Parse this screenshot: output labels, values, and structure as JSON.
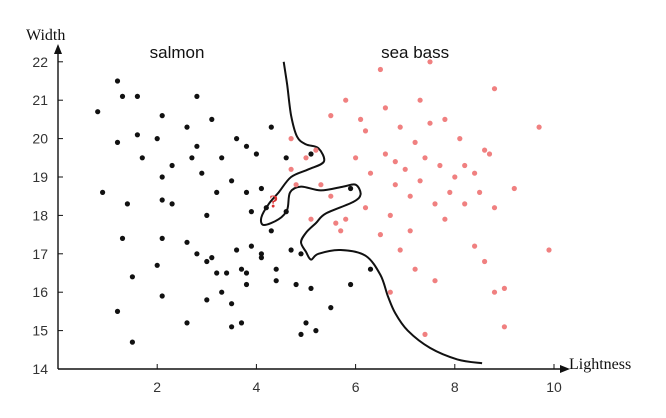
{
  "chart_data": {
    "type": "scatter",
    "xlabel": "Lightness",
    "ylabel": "Width",
    "xlim": [
      0,
      11.2
    ],
    "ylim": [
      14,
      22.4
    ],
    "x_ticks": [
      2,
      4,
      6,
      8,
      10
    ],
    "y_ticks": [
      14,
      15,
      16,
      17,
      18,
      19,
      20,
      21,
      22
    ],
    "grid": false,
    "annotations": [
      {
        "id": "salmon",
        "text": "salmon",
        "x": 2.4,
        "y": 22.1
      },
      {
        "id": "seabass",
        "text": "sea bass",
        "x": 7.2,
        "y": 22.1
      },
      {
        "id": "query",
        "text": "?",
        "x": 4.35,
        "y": 18.2
      }
    ],
    "series": [
      {
        "name": "salmon",
        "color": "#111111",
        "points": [
          [
            0.8,
            20.7
          ],
          [
            1.2,
            21.5
          ],
          [
            1.3,
            21.1
          ],
          [
            1.6,
            21.1
          ],
          [
            1.2,
            19.9
          ],
          [
            1.6,
            20.1
          ],
          [
            0.9,
            18.6
          ],
          [
            1.4,
            18.3
          ],
          [
            1.3,
            17.4
          ],
          [
            1.5,
            16.4
          ],
          [
            1.2,
            15.5
          ],
          [
            1.5,
            14.7
          ],
          [
            1.7,
            19.5
          ],
          [
            2.0,
            20.0
          ],
          [
            2.1,
            20.6
          ],
          [
            2.1,
            19.0
          ],
          [
            2.1,
            18.4
          ],
          [
            2.3,
            18.3
          ],
          [
            2.1,
            17.4
          ],
          [
            2.0,
            16.7
          ],
          [
            2.1,
            15.9
          ],
          [
            2.6,
            15.2
          ],
          [
            2.3,
            19.3
          ],
          [
            2.6,
            20.3
          ],
          [
            2.8,
            21.1
          ],
          [
            2.8,
            19.8
          ],
          [
            3.1,
            20.5
          ],
          [
            2.7,
            19.5
          ],
          [
            2.9,
            19.1
          ],
          [
            3.0,
            18.0
          ],
          [
            3.2,
            18.6
          ],
          [
            2.6,
            17.3
          ],
          [
            2.8,
            17.0
          ],
          [
            3.0,
            16.8
          ],
          [
            3.1,
            16.9
          ],
          [
            3.2,
            16.5
          ],
          [
            3.4,
            16.5
          ],
          [
            3.6,
            17.1
          ],
          [
            3.5,
            18.9
          ],
          [
            3.6,
            20.0
          ],
          [
            3.8,
            19.8
          ],
          [
            3.3,
            19.5
          ],
          [
            4.0,
            19.6
          ],
          [
            3.8,
            18.6
          ],
          [
            3.9,
            18.1
          ],
          [
            4.1,
            18.7
          ],
          [
            4.2,
            18.2
          ],
          [
            3.9,
            17.2
          ],
          [
            4.1,
            17.0
          ],
          [
            3.7,
            16.6
          ],
          [
            3.8,
            16.5
          ],
          [
            4.3,
            17.6
          ],
          [
            3.3,
            16.0
          ],
          [
            3.8,
            16.2
          ],
          [
            4.4,
            16.6
          ],
          [
            4.4,
            16.3
          ],
          [
            3.5,
            15.7
          ],
          [
            3.7,
            15.2
          ],
          [
            3.5,
            15.1
          ],
          [
            4.3,
            20.3
          ],
          [
            4.6,
            19.5
          ],
          [
            5.1,
            19.6
          ],
          [
            4.6,
            18.1
          ],
          [
            4.8,
            16.2
          ],
          [
            4.9,
            17.0
          ],
          [
            5.1,
            16.1
          ],
          [
            5.0,
            15.2
          ],
          [
            5.2,
            15.0
          ],
          [
            4.9,
            14.9
          ],
          [
            5.5,
            15.6
          ],
          [
            5.9,
            16.2
          ],
          [
            6.3,
            16.6
          ],
          [
            5.9,
            18.7
          ],
          [
            4.7,
            17.1
          ],
          [
            3.0,
            15.8
          ],
          [
            4.1,
            16.9
          ]
        ]
      },
      {
        "name": "sea bass",
        "color": "#f08080",
        "points": [
          [
            4.7,
            20.0
          ],
          [
            4.7,
            19.2
          ],
          [
            4.8,
            18.8
          ],
          [
            5.0,
            19.5
          ],
          [
            5.2,
            19.7
          ],
          [
            5.3,
            18.8
          ],
          [
            5.5,
            18.5
          ],
          [
            5.6,
            17.8
          ],
          [
            5.1,
            17.9
          ],
          [
            5.7,
            17.6
          ],
          [
            5.8,
            17.9
          ],
          [
            5.5,
            20.6
          ],
          [
            5.8,
            21.0
          ],
          [
            6.0,
            19.5
          ],
          [
            6.1,
            20.5
          ],
          [
            6.2,
            20.2
          ],
          [
            6.3,
            19.1
          ],
          [
            6.5,
            21.8
          ],
          [
            6.6,
            20.8
          ],
          [
            6.6,
            19.6
          ],
          [
            6.8,
            18.8
          ],
          [
            6.7,
            18.0
          ],
          [
            6.5,
            17.5
          ],
          [
            6.9,
            20.3
          ],
          [
            7.0,
            19.2
          ],
          [
            7.1,
            18.5
          ],
          [
            7.2,
            19.9
          ],
          [
            7.3,
            21.0
          ],
          [
            7.5,
            20.4
          ],
          [
            7.3,
            18.9
          ],
          [
            7.4,
            19.5
          ],
          [
            7.6,
            18.3
          ],
          [
            7.7,
            19.3
          ],
          [
            7.8,
            17.9
          ],
          [
            7.9,
            18.6
          ],
          [
            8.0,
            19.0
          ],
          [
            8.1,
            20.0
          ],
          [
            8.2,
            19.3
          ],
          [
            8.2,
            18.3
          ],
          [
            8.4,
            19.1
          ],
          [
            8.5,
            18.6
          ],
          [
            8.6,
            19.7
          ],
          [
            8.7,
            19.6
          ],
          [
            8.8,
            18.2
          ],
          [
            8.4,
            17.2
          ],
          [
            8.6,
            16.8
          ],
          [
            8.8,
            16.0
          ],
          [
            9.0,
            16.1
          ],
          [
            9.0,
            15.1
          ],
          [
            9.2,
            18.7
          ],
          [
            9.7,
            20.3
          ],
          [
            9.9,
            17.1
          ],
          [
            7.1,
            17.6
          ],
          [
            7.2,
            16.6
          ],
          [
            6.9,
            17.1
          ],
          [
            6.7,
            16.0
          ],
          [
            7.6,
            16.3
          ],
          [
            7.4,
            14.9
          ],
          [
            7.5,
            22.0
          ],
          [
            8.8,
            21.3
          ],
          [
            6.2,
            18.2
          ],
          [
            6.8,
            19.4
          ],
          [
            7.8,
            20.5
          ]
        ]
      }
    ],
    "boundary": [
      [
        4.55,
        22.0
      ],
      [
        4.62,
        21.4
      ],
      [
        4.7,
        20.6
      ],
      [
        4.82,
        20.05
      ],
      [
        5.0,
        19.85
      ],
      [
        5.25,
        19.75
      ],
      [
        5.36,
        19.4
      ],
      [
        5.05,
        19.2
      ],
      [
        4.7,
        19.0
      ],
      [
        4.45,
        18.6
      ],
      [
        4.25,
        18.3
      ],
      [
        4.1,
        17.95
      ],
      [
        4.15,
        17.75
      ],
      [
        4.45,
        17.9
      ],
      [
        4.62,
        18.15
      ],
      [
        4.68,
        18.6
      ],
      [
        4.9,
        18.75
      ],
      [
        5.3,
        18.65
      ],
      [
        5.75,
        18.75
      ],
      [
        6.0,
        18.8
      ],
      [
        6.1,
        18.55
      ],
      [
        5.95,
        18.35
      ],
      [
        5.4,
        18.05
      ],
      [
        5.2,
        17.8
      ],
      [
        5.0,
        17.55
      ],
      [
        4.9,
        17.3
      ],
      [
        5.0,
        17.05
      ],
      [
        5.1,
        16.85
      ],
      [
        5.25,
        17.0
      ],
      [
        5.7,
        17.1
      ],
      [
        6.2,
        16.95
      ],
      [
        6.5,
        16.45
      ],
      [
        6.65,
        15.9
      ],
      [
        6.8,
        15.45
      ],
      [
        7.05,
        15.0
      ],
      [
        7.5,
        14.55
      ],
      [
        8.05,
        14.25
      ],
      [
        8.55,
        14.15
      ]
    ]
  }
}
